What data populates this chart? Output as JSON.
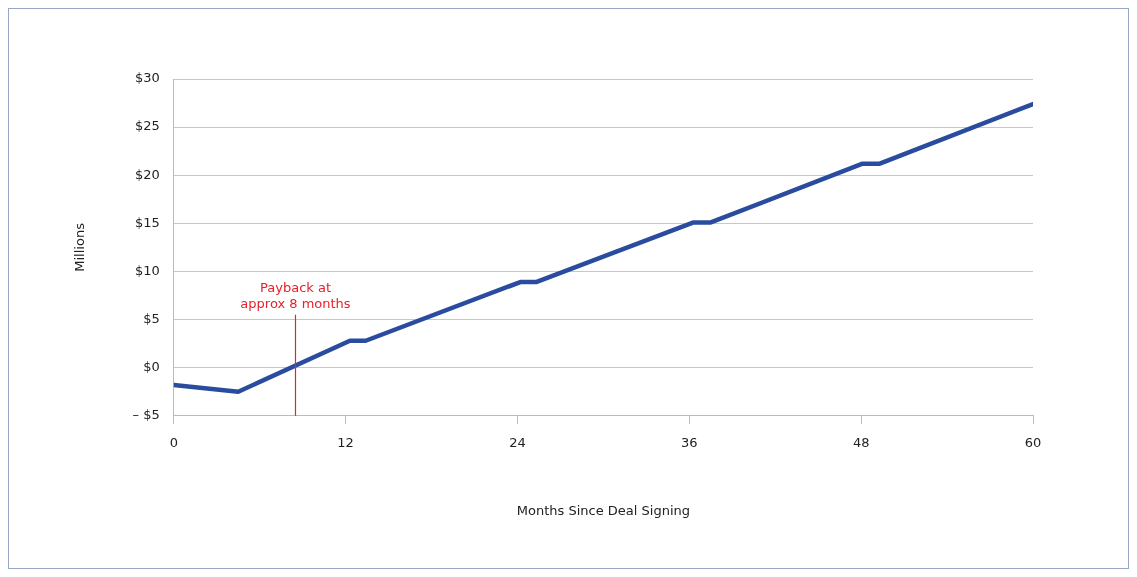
{
  "chart_data": {
    "type": "line",
    "xlabel": "Months Since Deal Signing",
    "ylabel": "Millions",
    "series": [
      {
        "color": "#2a4c9e",
        "x": [
          0,
          4.5,
          12.3,
          13.4,
          24.2,
          25.3,
          36.3,
          37.5,
          48.1,
          49.3,
          60
        ],
        "values": [
          -1.8,
          -2.5,
          2.8,
          2.8,
          8.9,
          8.9,
          15.1,
          15.1,
          21.2,
          21.2,
          27.4
        ]
      }
    ],
    "xlim": [
      0,
      60
    ],
    "xticks": [
      0,
      12,
      24,
      36,
      48,
      60
    ],
    "ylim": [
      -5,
      30
    ],
    "yticks": [
      {
        "value": -5,
        "label": "– $5"
      },
      {
        "value": 0,
        "label": "$0"
      },
      {
        "value": 5,
        "label": "$5"
      },
      {
        "value": 10,
        "label": "$10"
      },
      {
        "value": 15,
        "label": "$15"
      },
      {
        "value": 20,
        "label": "$20"
      },
      {
        "value": 25,
        "label": "$25"
      },
      {
        "value": 30,
        "label": "$30"
      }
    ],
    "grid": "y",
    "legend": false,
    "marker": "none",
    "line_style": "solid",
    "ref_lines": [
      {
        "axis": "x",
        "value": 8.5,
        "label": "Payback at\napprox 8 months",
        "color": "#e8202a"
      }
    ]
  }
}
